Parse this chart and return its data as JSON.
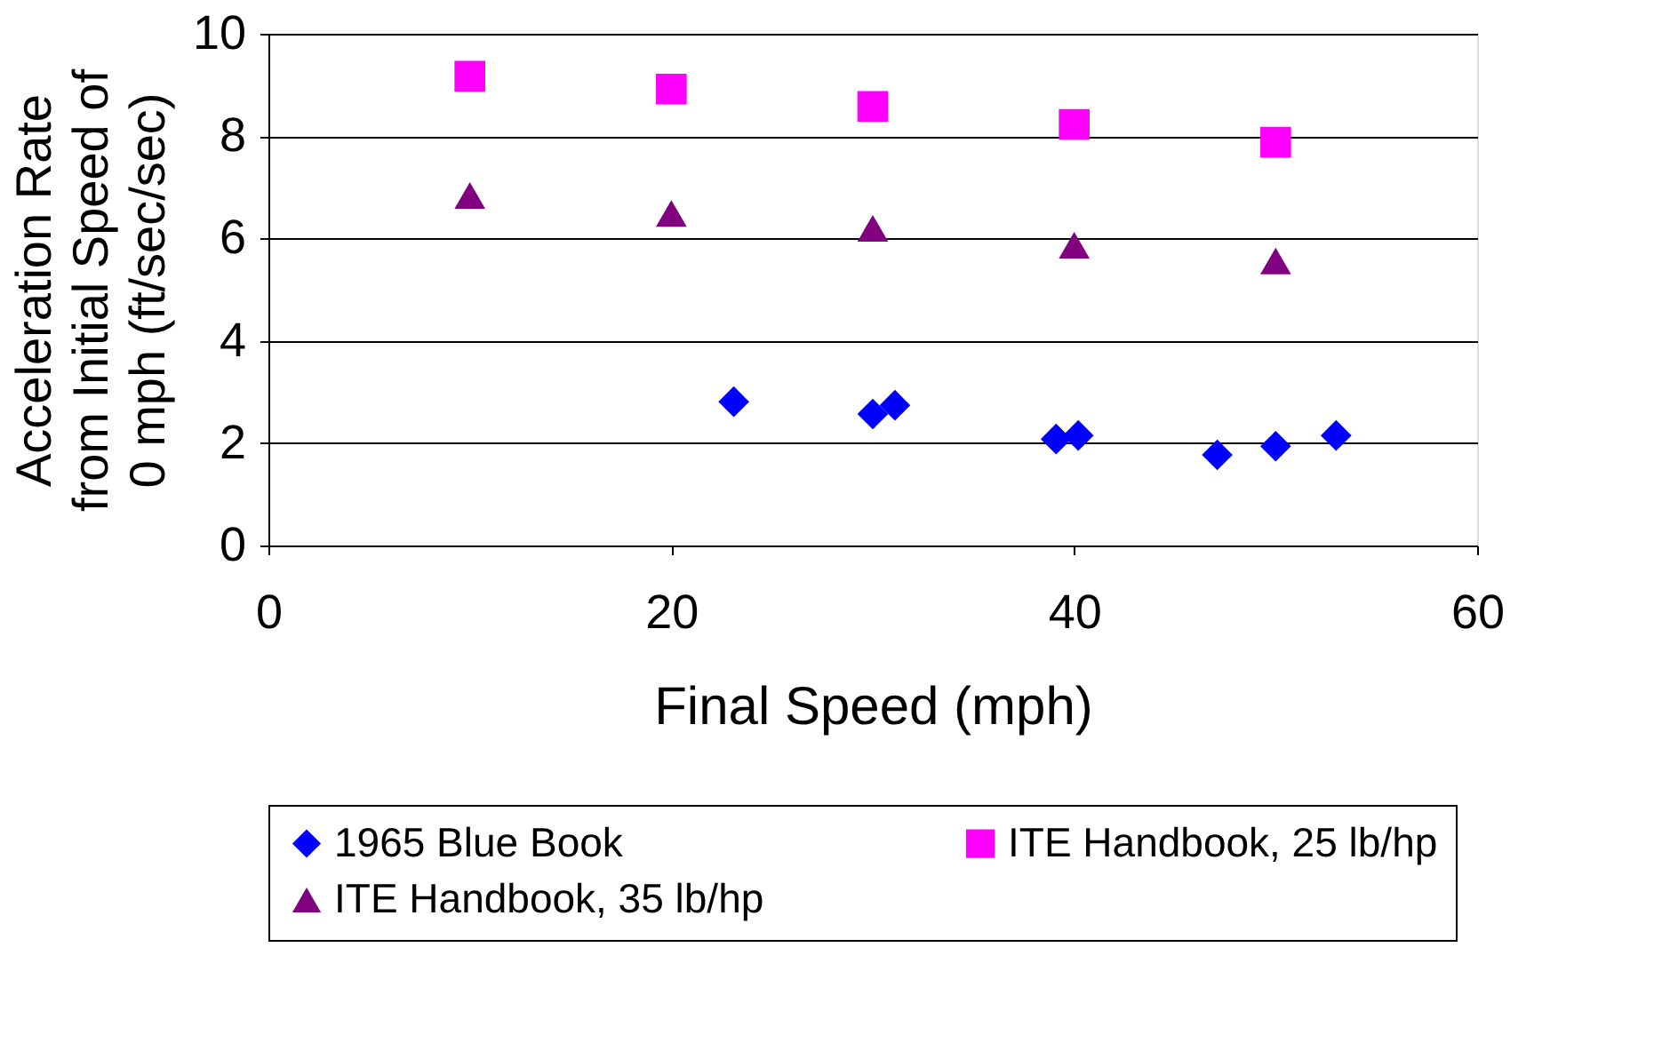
{
  "chart_data": {
    "type": "scatter",
    "xlabel": "Final Speed (mph)",
    "ylabel": "Acceleration Rate from Initial Speed of 0 mph (ft/sec/sec)",
    "xlim": [
      0,
      60
    ],
    "xticks": [
      0,
      20,
      40,
      60
    ],
    "ylim": [
      0,
      10
    ],
    "yticks": [
      0,
      2,
      4,
      6,
      8,
      10
    ],
    "grid": "y",
    "legend": "bottom",
    "series": [
      {
        "name": "1965 Blue Book",
        "color": "#0000ff",
        "marker": "diamond",
        "x": [
          23.1,
          30.0,
          31.1,
          39.1,
          40.2,
          47.1,
          50.0,
          53.0
        ],
        "values": [
          2.81,
          2.57,
          2.74,
          2.08,
          2.15,
          1.77,
          1.94,
          2.15
        ]
      },
      {
        "name": "ITE Handbook, 25 lb/hp",
        "color": "#ff00ff",
        "marker": "square",
        "x": [
          10,
          20,
          30,
          40,
          50
        ],
        "values": [
          9.17,
          8.92,
          8.58,
          8.23,
          7.88
        ]
      },
      {
        "name": "ITE Handbook, 35 lb/hp",
        "color": "#800080",
        "marker": "triangle",
        "x": [
          10,
          20,
          30,
          40,
          50
        ],
        "values": [
          6.84,
          6.49,
          6.2,
          5.87,
          5.56
        ]
      }
    ]
  }
}
